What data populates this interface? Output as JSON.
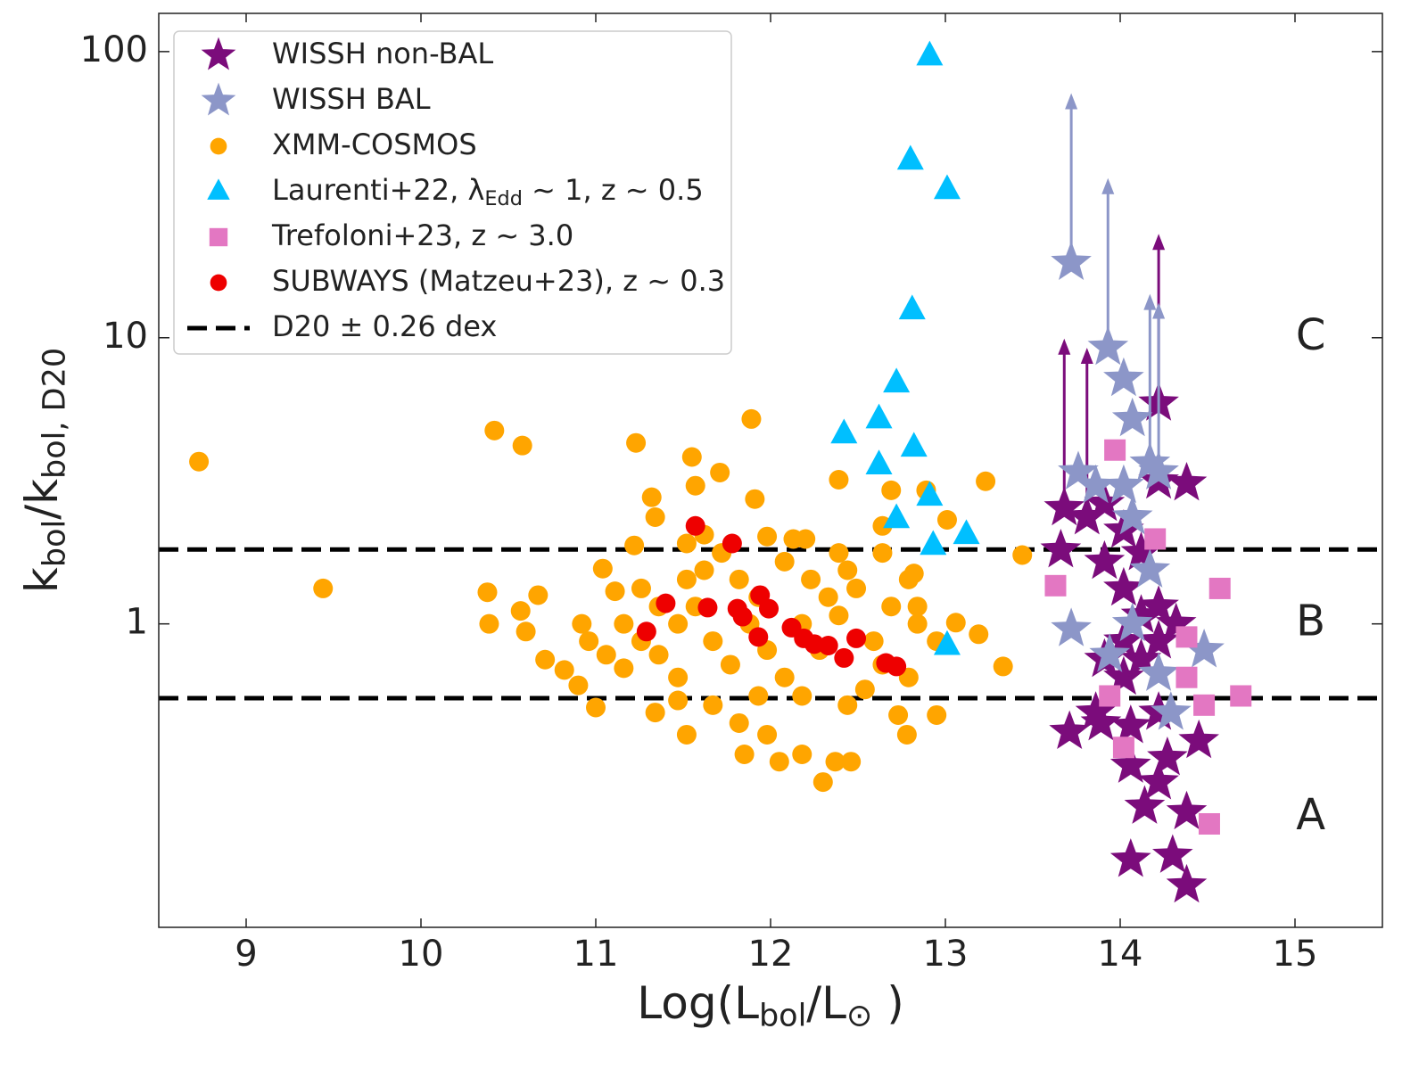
{
  "chart_data": {
    "type": "scatter",
    "xlabel": [
      "Log(L",
      "bol",
      "/L",
      "⊙",
      " )"
    ],
    "ylabel": [
      "k",
      "bol",
      "/k",
      "bol, D20"
    ],
    "xlim": [
      8.5,
      15.5
    ],
    "ylim": [
      0.087,
      136
    ],
    "yscale": "log",
    "xticks": [
      9,
      10,
      11,
      12,
      13,
      14,
      15
    ],
    "yticks": [
      1,
      10,
      100
    ],
    "legend": "upper left",
    "series": [
      {
        "name": "WISSH non-BAL",
        "marker": "star",
        "color": "#7b0c7b",
        "x": [
          13.71,
          13.68,
          13.66,
          13.81,
          13.91,
          14.02,
          13.91,
          14.02,
          14.12,
          14.22,
          13.91,
          14.02,
          14.12,
          14.22,
          14.32,
          13.89,
          14.06,
          14.22,
          14.45,
          14.27,
          14.06,
          14.22,
          14.14,
          14.38,
          14.06,
          14.3,
          14.38,
          14.22,
          14.38,
          14.22,
          14.12,
          13.86,
          14.02
        ],
        "values": [
          0.42,
          2.54,
          1.81,
          2.36,
          2.63,
          2.12,
          1.65,
          1.33,
          1.07,
          0.87,
          0.75,
          0.65,
          0.75,
          1.15,
          1.0,
          0.45,
          0.44,
          0.49,
          0.39,
          0.34,
          0.32,
          0.28,
          0.23,
          0.22,
          0.15,
          0.155,
          0.122,
          3.15,
          3.1,
          5.9,
          1.77,
          0.49,
          0.87
        ],
        "lower_limit": [
          false,
          true,
          false,
          true,
          false,
          false,
          false,
          false,
          false,
          false,
          false,
          false,
          false,
          false,
          false,
          false,
          false,
          false,
          false,
          false,
          false,
          false,
          false,
          false,
          false,
          false,
          false,
          false,
          false,
          true,
          false,
          false,
          false
        ]
      },
      {
        "name": "WISSH BAL",
        "marker": "star",
        "color": "#8c96c8",
        "x": [
          13.72,
          13.93,
          14.02,
          14.07,
          14.17,
          14.22,
          13.76,
          13.86,
          14.02,
          14.07,
          14.17,
          13.72,
          13.94,
          14.07,
          14.22,
          14.29,
          14.48
        ],
        "values": [
          18.3,
          9.24,
          7.19,
          5.2,
          3.64,
          3.39,
          3.39,
          3.04,
          3.04,
          2.36,
          1.54,
          0.96,
          0.78,
          1.0,
          0.67,
          0.49,
          0.81
        ],
        "lower_limit": [
          true,
          true,
          false,
          false,
          true,
          true,
          false,
          false,
          false,
          false,
          false,
          false,
          false,
          false,
          false,
          false,
          false
        ]
      },
      {
        "name": "XMM-COSMOS",
        "marker": "circle",
        "color": "#ffa500",
        "x": [
          8.73,
          9.44,
          10.42,
          10.58,
          10.38,
          10.39,
          10.57,
          10.67,
          10.6,
          10.71,
          10.82,
          10.9,
          10.92,
          11.0,
          11.04,
          11.11,
          11.23,
          11.32,
          11.34,
          11.22,
          11.55,
          11.57,
          11.71,
          11.89,
          11.91,
          11.98,
          12.13,
          12.2,
          12.39,
          12.39,
          12.69,
          12.89,
          13.01,
          13.23,
          13.44,
          13.33,
          13.19,
          13.06,
          12.95,
          12.78,
          12.73,
          12.54,
          12.46,
          12.37,
          12.3,
          12.18,
          12.05,
          11.98,
          11.85,
          11.82,
          11.52,
          11.34,
          11.47,
          11.67,
          11.16,
          11.26,
          11.36,
          11.47,
          11.57,
          11.67,
          11.77,
          11.88,
          11.98,
          12.08,
          12.18,
          12.28,
          12.39,
          12.49,
          12.59,
          12.69,
          12.79,
          12.84,
          12.95,
          11.16,
          11.06,
          10.96,
          11.47,
          11.62,
          11.72,
          11.82,
          11.93,
          12.08,
          12.23,
          12.33,
          12.44,
          12.64,
          11.52,
          11.36,
          11.26,
          11.93,
          12.18,
          12.44,
          12.64,
          12.79,
          12.84,
          12.64,
          12.82,
          11.52,
          11.62
        ],
        "values": [
          3.69,
          1.33,
          4.74,
          4.2,
          1.29,
          1.0,
          1.11,
          1.26,
          0.94,
          0.75,
          0.69,
          0.61,
          1.0,
          0.51,
          1.56,
          1.3,
          4.29,
          2.77,
          2.36,
          1.88,
          3.83,
          3.04,
          3.38,
          5.2,
          2.73,
          2.02,
          1.98,
          1.98,
          3.19,
          1.77,
          2.93,
          2.93,
          2.31,
          3.15,
          1.74,
          0.71,
          0.92,
          1.01,
          0.48,
          0.41,
          0.48,
          0.59,
          0.33,
          0.33,
          0.28,
          0.35,
          0.33,
          0.41,
          0.35,
          0.45,
          0.41,
          0.49,
          0.54,
          0.52,
          1.0,
          0.87,
          0.78,
          1.0,
          1.15,
          0.87,
          0.72,
          1.0,
          0.81,
          0.65,
          1.0,
          0.81,
          1.07,
          1.33,
          0.87,
          1.15,
          1.43,
          1.0,
          0.87,
          0.7,
          0.78,
          0.87,
          0.65,
          1.54,
          1.77,
          1.43,
          1.24,
          1.65,
          1.43,
          1.24,
          1.54,
          1.77,
          1.43,
          1.15,
          1.33,
          0.56,
          0.56,
          0.52,
          0.72,
          0.65,
          1.15,
          2.2,
          1.5,
          1.91,
          2.05
        ]
      },
      {
        "name": [
          "Laurenti+22, λ",
          "Edd",
          " ~ 1, z ~ 0.5"
        ],
        "marker": "triangle",
        "color": "#00bfff",
        "x": [
          12.91,
          12.8,
          13.01,
          12.81,
          12.72,
          12.62,
          12.42,
          12.82,
          12.62,
          12.91,
          12.72,
          13.12,
          12.93,
          13.01
        ],
        "values": [
          96.5,
          41.7,
          32.9,
          12.5,
          6.94,
          5.2,
          4.61,
          4.14,
          3.59,
          2.79,
          2.33,
          2.05,
          1.88,
          0.84
        ]
      },
      {
        "name": "Trefoloni+23, z ~ 3.0",
        "marker": "square",
        "color": "#e377c2",
        "x": [
          13.63,
          14.57,
          14.69,
          14.51,
          13.97,
          14.2,
          14.38,
          14.38,
          14.02,
          13.94,
          14.48
        ],
        "values": [
          1.36,
          1.33,
          0.56,
          0.2,
          4.05,
          1.98,
          0.9,
          0.65,
          0.37,
          0.56,
          0.52
        ]
      },
      {
        "name": "SUBWAYS (Matzeu+23), z ~ 0.3",
        "marker": "circle",
        "color": "#ee0000",
        "x": [
          11.57,
          11.78,
          11.4,
          11.29,
          11.64,
          11.81,
          11.84,
          11.94,
          11.99,
          11.93,
          12.12,
          12.19,
          12.25,
          12.33,
          12.42,
          12.49,
          12.66,
          12.72
        ],
        "values": [
          2.2,
          1.91,
          1.18,
          0.94,
          1.14,
          1.13,
          1.06,
          1.26,
          1.13,
          0.9,
          0.97,
          0.89,
          0.85,
          0.84,
          0.76,
          0.89,
          0.73,
          0.71
        ]
      }
    ],
    "hlines": {
      "label": "D20 ± 0.26 dex",
      "color": "#000000",
      "values": [
        1.82,
        0.55
      ]
    },
    "annotations": [
      {
        "text": "C",
        "x": 15.09,
        "y": 10
      },
      {
        "text": "B",
        "x": 15.09,
        "y": 1
      },
      {
        "text": "A",
        "x": 15.09,
        "y": 0.21
      }
    ]
  }
}
